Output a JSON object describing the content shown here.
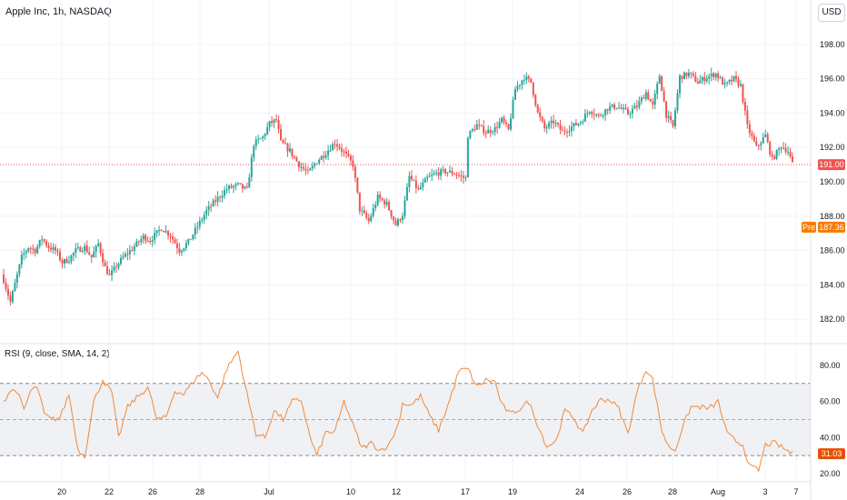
{
  "header": {
    "title": "Apple Inc, 1h, NASDAQ",
    "currency": "USD"
  },
  "rsi_title": "RSI (9, close, SMA, 14, 2)",
  "colors": {
    "up": "#26a69a",
    "down": "#ef5350",
    "rsi": "#f08a3c",
    "price_tag": "#ef5350",
    "pre_tag": "#f57c00",
    "grid": "#f0f3fa"
  },
  "chart_data": [
    {
      "type": "candlestick",
      "title": "Apple Inc, 1h, NASDAQ",
      "yticks": [
        "182.00",
        "184.00",
        "186.00",
        "188.00",
        "190.00",
        "192.00",
        "194.00",
        "196.00",
        "198.00"
      ],
      "ylim": [
        181,
        199
      ],
      "xticks": [
        "20",
        "22",
        "26",
        "28",
        "Jul",
        "10",
        "12",
        "17",
        "19",
        "24",
        "26",
        "28",
        "Aug",
        "3",
        "7"
      ],
      "last_price": {
        "label": "191.00",
        "value": 191.0
      },
      "pre_market": {
        "label": "Pre",
        "value_label": "187.36",
        "value": 187.36
      },
      "anchors": [
        [
          0,
          184.3
        ],
        [
          3,
          183.0
        ],
        [
          8,
          185.6
        ],
        [
          11,
          186.2
        ],
        [
          14,
          186.0
        ],
        [
          17,
          186.7
        ],
        [
          20,
          186.2
        ],
        [
          23,
          186.0
        ],
        [
          26,
          185.3
        ],
        [
          29,
          185.5
        ],
        [
          32,
          186.0
        ],
        [
          36,
          186.2
        ],
        [
          39,
          185.6
        ],
        [
          42,
          186.4
        ],
        [
          45,
          185.0
        ],
        [
          47,
          184.5
        ],
        [
          50,
          185.1
        ],
        [
          53,
          185.6
        ],
        [
          57,
          186.1
        ],
        [
          62,
          186.8
        ],
        [
          65,
          186.6
        ],
        [
          70,
          187.3
        ],
        [
          74,
          186.9
        ],
        [
          78,
          186.0
        ],
        [
          82,
          186.5
        ],
        [
          86,
          187.4
        ],
        [
          90,
          188.3
        ],
        [
          94,
          188.9
        ],
        [
          99,
          189.6
        ],
        [
          104,
          189.8
        ],
        [
          108,
          189.5
        ],
        [
          111,
          192.2
        ],
        [
          115,
          192.6
        ],
        [
          118,
          193.4
        ],
        [
          121,
          193.6
        ],
        [
          123,
          192.3
        ],
        [
          127,
          191.8
        ],
        [
          131,
          191.0
        ],
        [
          135,
          190.5
        ],
        [
          139,
          191.2
        ],
        [
          143,
          191.7
        ],
        [
          147,
          192.3
        ],
        [
          151,
          191.7
        ],
        [
          155,
          191.0
        ],
        [
          158,
          188.4
        ],
        [
          162,
          187.7
        ],
        [
          166,
          189.1
        ],
        [
          170,
          188.7
        ],
        [
          174,
          187.5
        ],
        [
          177,
          188.1
        ],
        [
          180,
          190.3
        ],
        [
          184,
          189.5
        ],
        [
          188,
          190.2
        ],
        [
          192,
          190.5
        ],
        [
          196,
          190.6
        ],
        [
          200,
          190.5
        ],
        [
          203,
          190.3
        ],
        [
          205,
          190.2
        ],
        [
          206,
          192.7
        ],
        [
          210,
          193.3
        ],
        [
          214,
          192.9
        ],
        [
          218,
          193.1
        ],
        [
          221,
          193.6
        ],
        [
          224,
          193.0
        ],
        [
          227,
          195.4
        ],
        [
          231,
          196.1
        ],
        [
          234,
          195.8
        ],
        [
          237,
          194.0
        ],
        [
          240,
          193.1
        ],
        [
          244,
          193.5
        ],
        [
          248,
          192.9
        ],
        [
          252,
          193.2
        ],
        [
          256,
          193.5
        ],
        [
          260,
          194.2
        ],
        [
          264,
          193.8
        ],
        [
          268,
          194.3
        ],
        [
          272,
          194.4
        ],
        [
          277,
          194.0
        ],
        [
          281,
          194.4
        ],
        [
          285,
          195.2
        ],
        [
          288,
          194.4
        ],
        [
          291,
          196.2
        ],
        [
          294,
          193.9
        ],
        [
          297,
          193.2
        ],
        [
          300,
          196.1
        ],
        [
          304,
          196.3
        ],
        [
          308,
          195.8
        ],
        [
          312,
          196.1
        ],
        [
          316,
          196.3
        ],
        [
          320,
          195.6
        ],
        [
          324,
          196.0
        ],
        [
          327,
          195.6
        ],
        [
          330,
          193.2
        ],
        [
          334,
          192.0
        ],
        [
          338,
          192.7
        ],
        [
          341,
          191.3
        ],
        [
          345,
          192.1
        ],
        [
          348,
          191.8
        ],
        [
          350,
          191.0
        ]
      ]
    },
    {
      "type": "line",
      "series": [
        {
          "name": "RSI",
          "label": "31.03",
          "value": 31.03
        }
      ],
      "yticks": [
        "20.00",
        "40.00",
        "60.00",
        "80.00"
      ],
      "ylim": [
        18,
        85
      ],
      "band": [
        30,
        70
      ],
      "midline": 50,
      "anchors": [
        [
          0,
          60
        ],
        [
          3,
          66
        ],
        [
          6,
          66
        ],
        [
          9,
          55
        ],
        [
          12,
          66
        ],
        [
          15,
          68
        ],
        [
          18,
          53
        ],
        [
          21,
          50
        ],
        [
          25,
          51
        ],
        [
          29,
          64
        ],
        [
          33,
          33
        ],
        [
          36,
          30
        ],
        [
          40,
          60
        ],
        [
          44,
          72
        ],
        [
          48,
          65
        ],
        [
          51,
          40
        ],
        [
          55,
          57
        ],
        [
          59,
          62
        ],
        [
          64,
          68
        ],
        [
          68,
          50
        ],
        [
          72,
          51
        ],
        [
          76,
          66
        ],
        [
          80,
          64
        ],
        [
          84,
          71
        ],
        [
          88,
          76
        ],
        [
          91,
          72
        ],
        [
          95,
          62
        ],
        [
          99,
          78
        ],
        [
          104,
          88
        ],
        [
          108,
          64
        ],
        [
          112,
          42
        ],
        [
          116,
          40
        ],
        [
          120,
          55
        ],
        [
          124,
          50
        ],
        [
          128,
          60
        ],
        [
          132,
          61
        ],
        [
          136,
          40
        ],
        [
          139,
          30
        ],
        [
          143,
          43
        ],
        [
          147,
          43
        ],
        [
          151,
          60
        ],
        [
          155,
          47
        ],
        [
          159,
          34
        ],
        [
          163,
          37
        ],
        [
          167,
          33
        ],
        [
          171,
          36
        ],
        [
          175,
          47
        ],
        [
          177,
          59
        ],
        [
          181,
          58
        ],
        [
          185,
          63
        ],
        [
          189,
          52
        ],
        [
          193,
          44
        ],
        [
          198,
          61
        ],
        [
          202,
          77
        ],
        [
          206,
          78
        ],
        [
          210,
          68
        ],
        [
          214,
          72
        ],
        [
          218,
          71
        ],
        [
          221,
          58
        ],
        [
          225,
          53
        ],
        [
          229,
          56
        ],
        [
          233,
          60
        ],
        [
          237,
          47
        ],
        [
          241,
          35
        ],
        [
          245,
          38
        ],
        [
          249,
          55
        ],
        [
          253,
          51
        ],
        [
          257,
          42
        ],
        [
          261,
          55
        ],
        [
          265,
          61
        ],
        [
          269,
          61
        ],
        [
          273,
          56
        ],
        [
          277,
          42
        ],
        [
          281,
          65
        ],
        [
          285,
          78
        ],
        [
          288,
          72
        ],
        [
          292,
          44
        ],
        [
          295,
          35
        ],
        [
          298,
          33
        ],
        [
          301,
          45
        ],
        [
          305,
          57
        ],
        [
          309,
          57
        ],
        [
          313,
          56
        ],
        [
          317,
          60
        ],
        [
          321,
          42
        ],
        [
          325,
          38
        ],
        [
          328,
          36
        ],
        [
          331,
          24
        ],
        [
          335,
          22
        ],
        [
          338,
          36
        ],
        [
          342,
          37
        ],
        [
          346,
          34
        ],
        [
          350,
          31
        ]
      ]
    }
  ]
}
